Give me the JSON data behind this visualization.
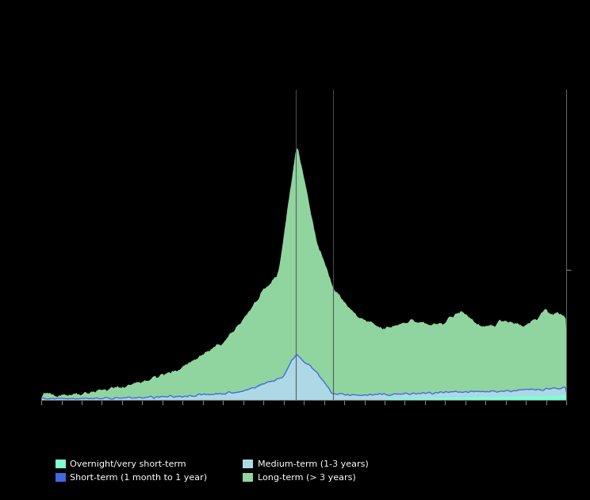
{
  "background_color": "#000000",
  "plot_bg_color": "#000000",
  "area_colors": {
    "total_long": "#90d4a0",
    "medium_term": "#add8e6",
    "short_term_line": "#4169e1",
    "overnight": "#7fffd4"
  },
  "vline_color": "#505050",
  "legend": {
    "items": [
      {
        "label": "Overnight/very short-term",
        "color": "#7fffd4"
      },
      {
        "label": "Short-term (1 month to 1 year)",
        "color": "#4169e1"
      },
      {
        "label": "Medium-term (1-3 years)",
        "color": "#add8e6"
      },
      {
        "label": "Long-term (> 3 years)",
        "color": "#90d4a0"
      }
    ]
  }
}
